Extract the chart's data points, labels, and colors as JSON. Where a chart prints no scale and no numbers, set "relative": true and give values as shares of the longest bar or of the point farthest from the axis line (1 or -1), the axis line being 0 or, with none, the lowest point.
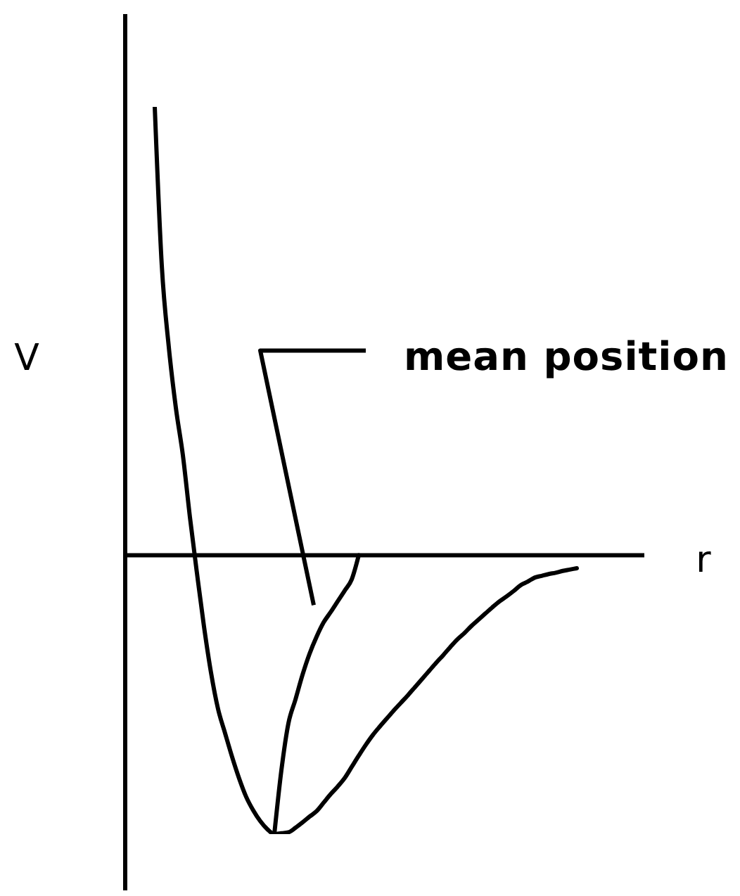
{
  "chart_data": {
    "type": "line",
    "xlabel": "r",
    "ylabel": "V",
    "relative": true,
    "marker": "none",
    "line_style": "solid",
    "categories": [
      null,
      null,
      null,
      null,
      null,
      null,
      null,
      null,
      null,
      null,
      null,
      null,
      null,
      null,
      null,
      null,
      null,
      null,
      null,
      null,
      null,
      null,
      null,
      null,
      null,
      null,
      null,
      null,
      null,
      null,
      null,
      null,
      null,
      null,
      null,
      null,
      null,
      null,
      null,
      null,
      null,
      null,
      null,
      null,
      null,
      null,
      null,
      null,
      null,
      null,
      null,
      null,
      null,
      null,
      null,
      null,
      null,
      null,
      null,
      null,
      null
    ],
    "series": [
      {
        "color": "#000000",
        "values": [
          1,
          0.646,
          0.464,
          0.329,
          0.223,
          0.085,
          -0.04,
          -0.159,
          -0.262,
          -0.343,
          -0.397,
          -0.45,
          -0.498,
          -0.539,
          -0.569,
          -0.593,
          -0.611,
          -0.622,
          -0.62,
          -0.618,
          -0.608,
          -0.596,
          -0.583,
          -0.571,
          -0.552,
          -0.533,
          -0.516,
          -0.497,
          -0.472,
          -0.447,
          -0.423,
          -0.401,
          -0.382,
          -0.364,
          -0.346,
          -0.329,
          -0.312,
          -0.294,
          -0.276,
          -0.258,
          -0.24,
          -0.223,
          -0.205,
          -0.188,
          -0.174,
          -0.158,
          -0.144,
          -0.13,
          -0.116,
          -0.103,
          -0.092,
          -0.08,
          -0.067,
          -0.059,
          -0.05,
          -0.046,
          -0.042,
          -0.039,
          -0.035,
          -0.032,
          -0.029
        ]
      },
      {
        "name": "mean position",
        "color": "#000000",
        "values": [
          null,
          null,
          null,
          null,
          null,
          null,
          null,
          null,
          null,
          null,
          null,
          null,
          null,
          null,
          null,
          null,
          null,
          -0.622,
          -0.48,
          -0.375,
          -0.322,
          -0.267,
          -0.22,
          -0.182,
          -0.15,
          -0.127,
          -0.103,
          -0.079,
          -0.054,
          0,
          null,
          null,
          null,
          null,
          null,
          null,
          null,
          null,
          null,
          null,
          null,
          null,
          null,
          null,
          null,
          null,
          null,
          null,
          null,
          null,
          null,
          null,
          null,
          null,
          null,
          null,
          null,
          null,
          null,
          null,
          null
        ]
      }
    ]
  }
}
